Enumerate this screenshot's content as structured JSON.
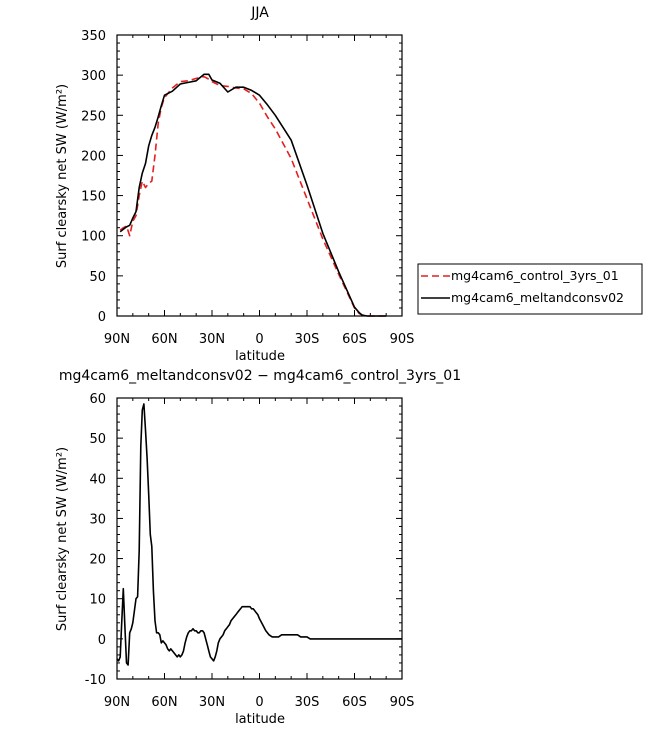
{
  "chart_data": [
    {
      "type": "line",
      "title": "JJA",
      "xlabel": "latitude",
      "ylabel": "Surf clearsky net SW (W/m²)",
      "ylim": [
        0,
        350
      ],
      "yticks": [
        0,
        50,
        100,
        150,
        200,
        250,
        300,
        350
      ],
      "xlim": [
        90,
        -90
      ],
      "xticks": [
        90,
        60,
        30,
        0,
        -30,
        -60,
        -90
      ],
      "xtick_labels": [
        "90N",
        "60N",
        "30N",
        "0",
        "30S",
        "60S",
        "90S"
      ],
      "legend_position": "right",
      "series": [
        {
          "name": "mg4cam6_control_3yrs_01",
          "color": "#e3201f",
          "style": "dashed",
          "x": [
            88,
            86,
            84,
            82,
            80,
            78,
            76,
            74,
            72,
            70,
            68,
            66,
            64,
            62,
            60,
            55,
            50,
            45,
            40,
            35,
            32,
            30,
            25,
            20,
            15,
            10,
            5,
            0,
            -5,
            -10,
            -20,
            -30,
            -40,
            -50,
            -60,
            -63,
            -65,
            -68,
            -72,
            -80
          ],
          "y": [
            107,
            110,
            112,
            100,
            118,
            125,
            150,
            168,
            160,
            165,
            168,
            200,
            240,
            260,
            272,
            284,
            292,
            293,
            296,
            298,
            295,
            292,
            287,
            286,
            284,
            283,
            277,
            265,
            248,
            233,
            196,
            146,
            96,
            52,
            10,
            3,
            1,
            0,
            0,
            0
          ]
        },
        {
          "name": "mg4cam6_meltandconsv02",
          "color": "#000000",
          "style": "solid",
          "x": [
            88,
            86,
            84,
            82,
            80,
            78,
            76,
            74,
            72,
            70,
            68,
            66,
            64,
            62,
            60,
            55,
            50,
            45,
            40,
            35,
            32,
            30,
            25,
            20,
            15,
            10,
            5,
            0,
            -5,
            -10,
            -20,
            -30,
            -40,
            -50,
            -60,
            -63,
            -65,
            -68,
            -72,
            -80
          ],
          "y": [
            105,
            108,
            111,
            113,
            122,
            130,
            160,
            178,
            190,
            212,
            225,
            235,
            248,
            262,
            275,
            280,
            289,
            291,
            293,
            301,
            301,
            294,
            290,
            279,
            285,
            285,
            281,
            275,
            263,
            250,
            219,
            163,
            103,
            55,
            11,
            4,
            1,
            0,
            0,
            0
          ]
        }
      ]
    },
    {
      "type": "line",
      "title": "mg4cam6_meltandconsv02 − mg4cam6_control_3yrs_01",
      "xlabel": "latitude",
      "ylabel": "Surf clearsky net SW (W/m²)",
      "ylim": [
        -10,
        60
      ],
      "yticks": [
        -10,
        0,
        10,
        20,
        30,
        40,
        50,
        60
      ],
      "xlim": [
        90,
        -90
      ],
      "xticks": [
        90,
        60,
        30,
        0,
        -30,
        -60,
        -90
      ],
      "xtick_labels": [
        "90N",
        "60N",
        "30N",
        "0",
        "30S",
        "60S",
        "90S"
      ],
      "series": [
        {
          "color": "#000000",
          "style": "solid",
          "x": [
            90,
            89,
            88,
            87,
            86,
            85,
            84,
            83,
            82,
            81,
            80,
            79,
            78,
            77,
            76,
            75,
            74,
            73,
            72,
            71,
            70,
            69,
            68,
            67,
            66,
            65,
            64,
            63,
            62,
            61,
            60,
            59,
            58,
            57,
            56,
            55,
            54,
            53,
            52,
            51,
            50,
            49,
            48,
            47,
            46,
            45,
            44,
            43,
            42,
            41,
            40,
            39,
            38,
            37,
            36,
            35,
            34,
            33,
            32,
            31,
            30,
            29,
            28,
            27,
            26,
            25,
            24,
            23,
            22,
            21,
            20,
            19,
            18,
            17,
            16,
            15,
            14,
            13,
            12,
            11,
            10,
            9,
            8,
            7,
            6,
            5,
            4,
            3,
            2,
            1,
            0,
            -2,
            -4,
            -6,
            -8,
            -10,
            -12,
            -14,
            -16,
            -18,
            -20,
            -22,
            -24,
            -26,
            -28,
            -30,
            -32,
            -34,
            -36,
            -38,
            -40,
            -42,
            -44,
            -46,
            -48,
            -50,
            -52,
            -54,
            -56,
            -58,
            -60,
            -65,
            -70,
            -80,
            -90
          ],
          "y": [
            -5,
            -5.5,
            -4.5,
            4.5,
            12.5,
            3,
            -6,
            -6.5,
            1.5,
            2.5,
            4,
            7,
            10,
            10.5,
            22,
            48,
            57,
            58.5,
            52,
            45,
            36,
            26,
            23,
            12,
            4.5,
            1.5,
            1.5,
            1,
            -1,
            -0.5,
            -1,
            -1.5,
            -2.5,
            -3,
            -2.5,
            -3,
            -3.5,
            -4,
            -4.5,
            -4,
            -4.5,
            -4,
            -3,
            -1,
            0.5,
            1.5,
            2,
            2,
            2.5,
            2,
            2,
            1.5,
            1.5,
            2,
            2,
            1.5,
            0,
            -1.5,
            -3,
            -4.5,
            -5,
            -5.5,
            -4.5,
            -3,
            -1,
            0,
            0.5,
            1,
            2,
            2.5,
            3,
            3.5,
            4.5,
            5,
            5.5,
            6,
            6.5,
            7,
            7.5,
            8,
            8,
            8,
            8,
            8,
            8,
            7.5,
            7.5,
            7,
            6.5,
            6,
            5,
            3.5,
            2,
            1,
            0.5,
            0.5,
            0.5,
            1,
            1,
            1,
            1,
            1,
            1,
            0.5,
            0.5,
            0.5,
            0,
            0,
            0,
            0,
            0,
            0,
            0,
            0,
            0,
            0,
            0,
            0,
            0,
            0,
            0,
            0,
            0,
            0,
            0
          ]
        }
      ]
    }
  ]
}
